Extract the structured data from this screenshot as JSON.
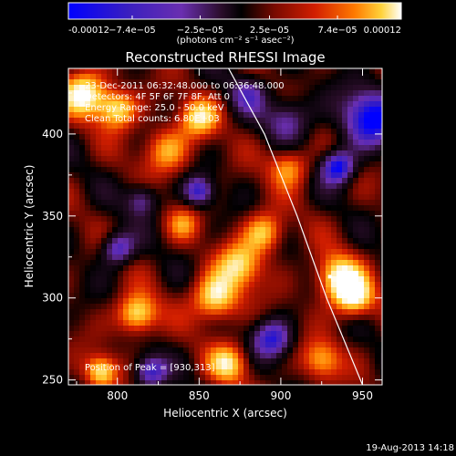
{
  "colors": {
    "background": "#000000",
    "text": "#ffffff",
    "colormap": [
      "#0000ff",
      "#3a1fbf",
      "#6a2fb0",
      "#2a0d2a",
      "#000000",
      "#7a0a00",
      "#d21e00",
      "#ff7a00",
      "#ffd23a",
      "#ffffff"
    ]
  },
  "chart_data": {
    "type": "heatmap",
    "title": "Reconstructed RHESSI Image",
    "xlabel": "Heliocentric X (arcsec)",
    "ylabel": "Heliocentric Y (arcsec)",
    "xlim": [
      770,
      962
    ],
    "ylim": [
      247,
      440
    ],
    "xticks": [
      800,
      850,
      900,
      950
    ],
    "yticks": [
      250,
      300,
      350,
      400
    ],
    "colorbar": {
      "range": [
        -0.00012,
        0.00012
      ],
      "tick_values": [
        -0.00012,
        -7.4e-05,
        -2.5e-05,
        2.5e-05,
        7.4e-05,
        0.00012
      ],
      "tick_labels": [
        "-0.00012",
        "−7.4e−05",
        "−2.5e−05",
        "2.5e−05",
        "7.4e−05",
        "0.00012"
      ],
      "units": "(photons cm⁻² s⁻¹ asec⁻²)"
    },
    "annotations": {
      "time": "23-Dec-2011 06:32:48.000 to 06:36:48.000",
      "detectors": "Detectors: 4F 5F 6F 7F 8F, Att 0",
      "energy": "Energy Range: 25.0 - 50.0 keV",
      "clean": "Clean     Total counts: 6.80E+03",
      "peak": "Position of Peak = [930,313]"
    },
    "peak": [
      930,
      313
    ],
    "limb_arc": [
      [
        868,
        440
      ],
      [
        890,
        400
      ],
      [
        910,
        350
      ],
      [
        928,
        300
      ],
      [
        950,
        247
      ]
    ],
    "footer": "19-Aug-2013 14:18"
  }
}
